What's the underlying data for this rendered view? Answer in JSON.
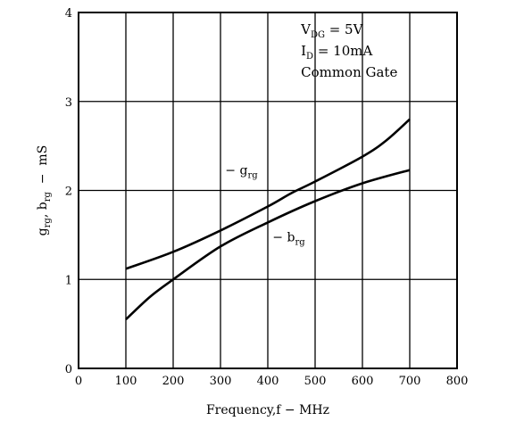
{
  "chart_data": {
    "type": "line",
    "xlabel": "Frequency,f − MHz",
    "ylabel": {
      "main_g": "g",
      "sub_g": "rg",
      "sep": ", ",
      "main_b": "b",
      "sub_b": "rg",
      "unit": "  −  mS"
    },
    "xlim": [
      0,
      800
    ],
    "ylim": [
      0,
      4
    ],
    "x_ticks": [
      0,
      100,
      200,
      300,
      400,
      500,
      600,
      700,
      800
    ],
    "x_tick_labels": [
      "0",
      "100",
      "200",
      "300",
      "400",
      "500",
      "600",
      "700",
      "800"
    ],
    "y_ticks": [
      0,
      1,
      2,
      3,
      4
    ],
    "y_tick_labels": [
      "0",
      "1",
      "2",
      "3",
      "4"
    ],
    "grid": true,
    "conditions": [
      {
        "main": "V",
        "sub": "DG",
        "rest": " = 5V"
      },
      {
        "main": "I",
        "sub": "D",
        "rest": " = 10mA"
      },
      {
        "main": "Common Gate",
        "sub": "",
        "rest": ""
      }
    ],
    "series": [
      {
        "name": "− grg",
        "label_main": "− g",
        "label_sub": "rg",
        "x": [
          100,
          200,
          300,
          400,
          450,
          500,
          600,
          650,
          700
        ],
        "y": [
          1.12,
          1.31,
          1.55,
          1.82,
          1.97,
          2.1,
          2.38,
          2.56,
          2.8
        ]
      },
      {
        "name": "− brg",
        "label_main": "− b",
        "label_sub": "rg",
        "x": [
          100,
          150,
          200,
          300,
          400,
          500,
          600,
          700
        ],
        "y": [
          0.55,
          0.8,
          1.0,
          1.37,
          1.64,
          1.88,
          2.08,
          2.23
        ]
      }
    ]
  }
}
